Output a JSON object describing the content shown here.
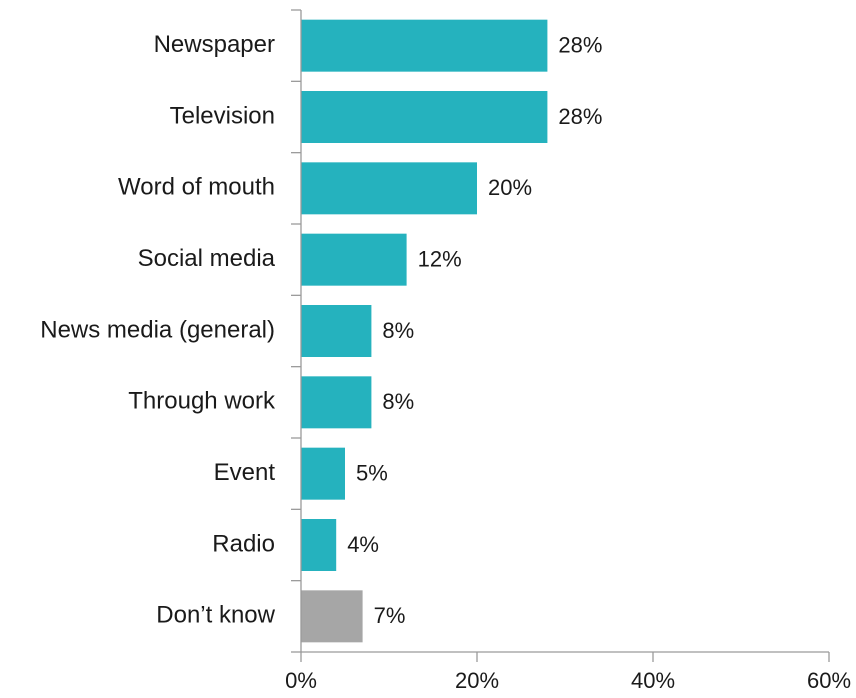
{
  "chart_data": {
    "type": "bar",
    "orientation": "horizontal",
    "categories": [
      "Newspaper",
      "Television",
      "Word of mouth",
      "Social media",
      "News media (general)",
      "Through work",
      "Event",
      "Radio",
      "Don’t know"
    ],
    "values": [
      28,
      28,
      20,
      12,
      8,
      8,
      5,
      4,
      7
    ],
    "value_labels": [
      "28%",
      "28%",
      "20%",
      "12%",
      "8%",
      "8%",
      "5%",
      "4%",
      "7%"
    ],
    "x_ticks": [
      0,
      20,
      40,
      60
    ],
    "x_tick_labels": [
      "0%",
      "20%",
      "40%",
      "60%"
    ],
    "xlim": [
      0,
      60
    ],
    "grid": false,
    "colors": {
      "default_bar": "#25b2be",
      "dont_know_bar": "#a6a6a6"
    }
  }
}
